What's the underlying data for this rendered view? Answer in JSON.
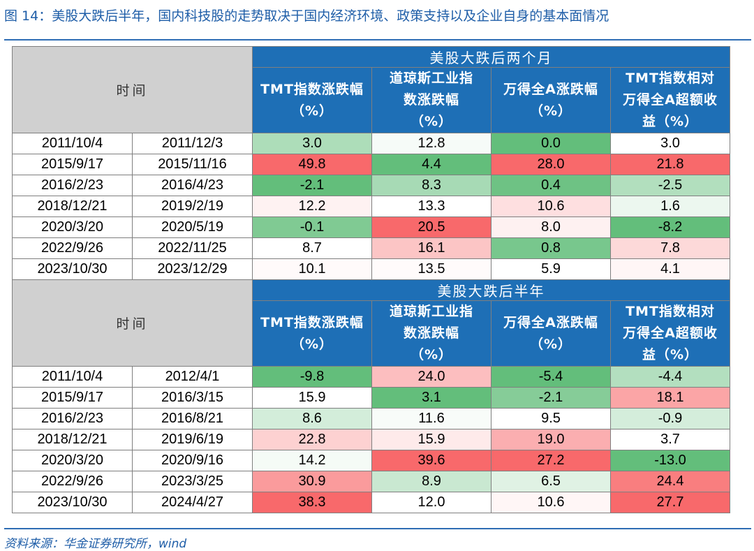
{
  "title": "图 14：美股大跌后半年，国内科技股的走势取决于国内经济环境、政策支持以及企业自身的基本面情况",
  "source": "资料来源：华金证券研究所，wind",
  "colors": {
    "header_blue": "#1e6fb6",
    "time_gray": "#d0d0d0",
    "rule_blue": "#2e6db4"
  },
  "sections": [
    {
      "time_label": "时间",
      "group_label": "美股大跌后两个月",
      "columns": [
        "TMT指数涨跌幅（%）",
        "道琼斯工业指数涨跌幅（%）",
        "万得全A涨跌幅（%）",
        "TMT指数相对万得全A超额收益（%）"
      ],
      "rows": [
        {
          "start": "2011/10/4",
          "end": "2011/12/3",
          "values": [
            "3.0",
            "12.8",
            "0.0",
            "3.0"
          ]
        },
        {
          "start": "2015/9/17",
          "end": "2015/11/16",
          "values": [
            "49.8",
            "4.4",
            "28.0",
            "21.8"
          ]
        },
        {
          "start": "2016/2/23",
          "end": "2016/4/23",
          "values": [
            "-2.1",
            "8.3",
            "0.4",
            "-2.5"
          ]
        },
        {
          "start": "2018/12/21",
          "end": "2019/2/19",
          "values": [
            "12.2",
            "13.3",
            "10.6",
            "1.6"
          ]
        },
        {
          "start": "2020/3/20",
          "end": "2020/5/19",
          "values": [
            "-0.1",
            "20.5",
            "8.0",
            "-8.2"
          ]
        },
        {
          "start": "2022/9/26",
          "end": "2022/11/25",
          "values": [
            "8.7",
            "16.1",
            "0.8",
            "7.8"
          ]
        },
        {
          "start": "2023/10/30",
          "end": "2023/12/29",
          "values": [
            "10.1",
            "13.5",
            "5.9",
            "4.1"
          ]
        }
      ]
    },
    {
      "time_label": "时间",
      "group_label": "美股大跌后半年",
      "columns": [
        "TMT指数涨跌幅（%）",
        "道琼斯工业指数涨跌幅（%）",
        "万得全A涨跌幅（%）",
        "TMT指数相对万得全A超额收益（%）"
      ],
      "rows": [
        {
          "start": "2011/10/4",
          "end": "2012/4/1",
          "values": [
            "-9.8",
            "24.0",
            "-5.4",
            "-4.4"
          ]
        },
        {
          "start": "2015/9/17",
          "end": "2016/3/15",
          "values": [
            "15.9",
            "3.1",
            "-2.1",
            "18.1"
          ]
        },
        {
          "start": "2016/2/23",
          "end": "2016/8/21",
          "values": [
            "8.6",
            "11.6",
            "9.5",
            "-0.9"
          ]
        },
        {
          "start": "2018/12/21",
          "end": "2019/6/19",
          "values": [
            "22.8",
            "15.9",
            "19.0",
            "3.7"
          ]
        },
        {
          "start": "2020/3/20",
          "end": "2020/9/16",
          "values": [
            "14.2",
            "39.6",
            "27.2",
            "-13.0"
          ]
        },
        {
          "start": "2022/9/26",
          "end": "2023/3/25",
          "values": [
            "30.9",
            "8.9",
            "6.5",
            "24.4"
          ]
        },
        {
          "start": "2023/10/30",
          "end": "2024/4/27",
          "values": [
            "38.3",
            "12.0",
            "10.6",
            "27.7"
          ]
        }
      ]
    }
  ]
}
